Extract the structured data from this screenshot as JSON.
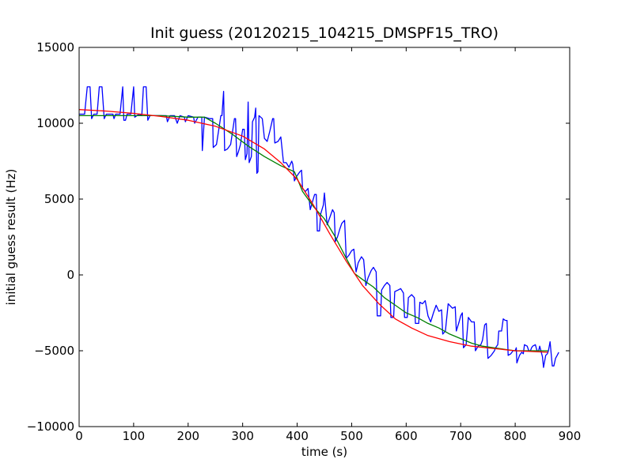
{
  "chart_data": {
    "type": "line",
    "title": "Init guess (20120215_104215_DMSPF15_TRO)",
    "xlabel": "time (s)",
    "ylabel": "initial guess result (Hz)",
    "xlim": [
      0,
      900
    ],
    "ylim": [
      -10000,
      15000
    ],
    "xticks": [
      0,
      100,
      200,
      300,
      400,
      500,
      600,
      700,
      800,
      900
    ],
    "yticks": [
      -10000,
      -5000,
      0,
      5000,
      10000,
      15000
    ],
    "xtick_labels": [
      "0",
      "100",
      "200",
      "300",
      "400",
      "500",
      "600",
      "700",
      "800",
      "900"
    ],
    "ytick_labels": [
      "−10000",
      "−5000",
      "0",
      "5000",
      "10000",
      "15000"
    ],
    "grid": false,
    "legend": "none",
    "series": [
      {
        "color": "#0000ff",
        "points": [
          [
            0,
            10600
          ],
          [
            10,
            10600
          ],
          [
            15,
            12400
          ],
          [
            20,
            12400
          ],
          [
            23,
            10300
          ],
          [
            27,
            10600
          ],
          [
            33,
            10600
          ],
          [
            37,
            12400
          ],
          [
            42,
            12400
          ],
          [
            46,
            10300
          ],
          [
            50,
            10600
          ],
          [
            55,
            10600
          ],
          [
            62,
            10600
          ],
          [
            64,
            10300
          ],
          [
            67,
            10600
          ],
          [
            75,
            10600
          ],
          [
            80,
            12400
          ],
          [
            82,
            10200
          ],
          [
            85,
            10200
          ],
          [
            88,
            10600
          ],
          [
            95,
            10600
          ],
          [
            100,
            12400
          ],
          [
            102,
            10400
          ],
          [
            110,
            10600
          ],
          [
            115,
            10500
          ],
          [
            118,
            12400
          ],
          [
            123,
            12400
          ],
          [
            126,
            10200
          ],
          [
            130,
            10500
          ],
          [
            145,
            10500
          ],
          [
            160,
            10500
          ],
          [
            162,
            10100
          ],
          [
            167,
            10500
          ],
          [
            175,
            10500
          ],
          [
            180,
            10000
          ],
          [
            185,
            10500
          ],
          [
            193,
            10400
          ],
          [
            195,
            10100
          ],
          [
            200,
            10500
          ],
          [
            210,
            10400
          ],
          [
            212,
            10000
          ],
          [
            218,
            10400
          ],
          [
            225,
            10400
          ],
          [
            226,
            8200
          ],
          [
            230,
            10400
          ],
          [
            240,
            10300
          ],
          [
            245,
            10300
          ],
          [
            246,
            8400
          ],
          [
            252,
            8600
          ],
          [
            258,
            10000
          ],
          [
            260,
            10500
          ],
          [
            262,
            10500
          ],
          [
            265,
            12100
          ],
          [
            267,
            8200
          ],
          [
            272,
            8300
          ],
          [
            278,
            8600
          ],
          [
            285,
            10300
          ],
          [
            287,
            10300
          ],
          [
            289,
            7800
          ],
          [
            292,
            8100
          ],
          [
            296,
            8600
          ],
          [
            300,
            9600
          ],
          [
            303,
            9600
          ],
          [
            305,
            7600
          ],
          [
            308,
            8000
          ],
          [
            310,
            11400
          ],
          [
            312,
            7400
          ],
          [
            316,
            7800
          ],
          [
            318,
            10100
          ],
          [
            322,
            10400
          ],
          [
            324,
            11000
          ],
          [
            326,
            6700
          ],
          [
            328,
            6800
          ],
          [
            330,
            10500
          ],
          [
            336,
            10300
          ],
          [
            340,
            9000
          ],
          [
            345,
            8800
          ],
          [
            350,
            9500
          ],
          [
            355,
            10300
          ],
          [
            357,
            10300
          ],
          [
            359,
            8700
          ],
          [
            365,
            8800
          ],
          [
            370,
            9100
          ],
          [
            375,
            7400
          ],
          [
            380,
            7400
          ],
          [
            385,
            7100
          ],
          [
            390,
            7500
          ],
          [
            392,
            7300
          ],
          [
            395,
            6200
          ],
          [
            399,
            6500
          ],
          [
            405,
            6800
          ],
          [
            408,
            6900
          ],
          [
            410,
            5700
          ],
          [
            415,
            5500
          ],
          [
            420,
            5700
          ],
          [
            424,
            4300
          ],
          [
            428,
            4800
          ],
          [
            432,
            5300
          ],
          [
            435,
            5300
          ],
          [
            437,
            2900
          ],
          [
            441,
            2900
          ],
          [
            443,
            4000
          ],
          [
            448,
            4600
          ],
          [
            450,
            5400
          ],
          [
            455,
            3300
          ],
          [
            460,
            3800
          ],
          [
            465,
            4300
          ],
          [
            468,
            4100
          ],
          [
            470,
            2200
          ],
          [
            474,
            2500
          ],
          [
            478,
            3000
          ],
          [
            482,
            3400
          ],
          [
            487,
            3600
          ],
          [
            490,
            1100
          ],
          [
            495,
            1300
          ],
          [
            500,
            1600
          ],
          [
            504,
            1700
          ],
          [
            508,
            200
          ],
          [
            512,
            800
          ],
          [
            518,
            1200
          ],
          [
            522,
            1000
          ],
          [
            526,
            -700
          ],
          [
            530,
            -200
          ],
          [
            536,
            300
          ],
          [
            540,
            500
          ],
          [
            545,
            200
          ],
          [
            547,
            -2700
          ],
          [
            553,
            -2700
          ],
          [
            555,
            -1000
          ],
          [
            560,
            -700
          ],
          [
            565,
            -500
          ],
          [
            570,
            -700
          ],
          [
            572,
            -2800
          ],
          [
            577,
            -2800
          ],
          [
            579,
            -1100
          ],
          [
            585,
            -1000
          ],
          [
            590,
            -900
          ],
          [
            595,
            -1200
          ],
          [
            597,
            -2800
          ],
          [
            602,
            -2800
          ],
          [
            604,
            -1500
          ],
          [
            610,
            -1300
          ],
          [
            615,
            -1500
          ],
          [
            617,
            -3200
          ],
          [
            623,
            -3200
          ],
          [
            625,
            -1800
          ],
          [
            630,
            -1900
          ],
          [
            635,
            -1700
          ],
          [
            640,
            -2700
          ],
          [
            645,
            -3100
          ],
          [
            650,
            -2500
          ],
          [
            655,
            -2000
          ],
          [
            660,
            -2400
          ],
          [
            665,
            -2300
          ],
          [
            667,
            -3900
          ],
          [
            672,
            -3700
          ],
          [
            677,
            -1900
          ],
          [
            685,
            -2200
          ],
          [
            690,
            -2100
          ],
          [
            692,
            -3700
          ],
          [
            697,
            -3100
          ],
          [
            700,
            -2700
          ],
          [
            703,
            -2500
          ],
          [
            705,
            -4800
          ],
          [
            710,
            -4600
          ],
          [
            714,
            -2800
          ],
          [
            720,
            -3100
          ],
          [
            725,
            -3100
          ],
          [
            727,
            -5000
          ],
          [
            732,
            -4700
          ],
          [
            737,
            -4600
          ],
          [
            740,
            -4300
          ],
          [
            742,
            -3800
          ],
          [
            744,
            -3300
          ],
          [
            747,
            -3200
          ],
          [
            750,
            -5500
          ],
          [
            756,
            -5300
          ],
          [
            762,
            -5000
          ],
          [
            764,
            -4800
          ],
          [
            768,
            -4600
          ],
          [
            770,
            -3700
          ],
          [
            775,
            -3700
          ],
          [
            778,
            -2900
          ],
          [
            782,
            -3000
          ],
          [
            785,
            -3000
          ],
          [
            787,
            -5300
          ],
          [
            792,
            -5200
          ],
          [
            796,
            -5000
          ],
          [
            800,
            -5000
          ],
          [
            802,
            -4800
          ],
          [
            803,
            -5800
          ],
          [
            808,
            -5300
          ],
          [
            812,
            -5100
          ],
          [
            815,
            -5200
          ],
          [
            817,
            -4600
          ],
          [
            822,
            -4700
          ],
          [
            825,
            -5000
          ],
          [
            828,
            -5000
          ],
          [
            830,
            -4800
          ],
          [
            832,
            -4700
          ],
          [
            837,
            -4600
          ],
          [
            840,
            -5000
          ],
          [
            843,
            -5000
          ],
          [
            845,
            -4700
          ],
          [
            850,
            -5400
          ],
          [
            852,
            -6100
          ],
          [
            856,
            -5300
          ],
          [
            859,
            -5200
          ],
          [
            861,
            -5000
          ],
          [
            864,
            -4400
          ],
          [
            868,
            -6000
          ],
          [
            871,
            -6000
          ],
          [
            874,
            -5500
          ],
          [
            877,
            -5300
          ],
          [
            880,
            -5100
          ]
        ]
      },
      {
        "color": "#008000",
        "points": [
          [
            0,
            10500
          ],
          [
            50,
            10500
          ],
          [
            100,
            10500
          ],
          [
            150,
            10500
          ],
          [
            200,
            10400
          ],
          [
            230,
            10400
          ],
          [
            250,
            10000
          ],
          [
            280,
            9300
          ],
          [
            310,
            8500
          ],
          [
            340,
            7800
          ],
          [
            370,
            7200
          ],
          [
            395,
            6800
          ],
          [
            410,
            5500
          ],
          [
            430,
            4500
          ],
          [
            450,
            3700
          ],
          [
            470,
            2500
          ],
          [
            490,
            1100
          ],
          [
            505,
            100
          ],
          [
            520,
            -300
          ],
          [
            540,
            -800
          ],
          [
            560,
            -1500
          ],
          [
            580,
            -2000
          ],
          [
            600,
            -2500
          ],
          [
            620,
            -2800
          ],
          [
            640,
            -3200
          ],
          [
            660,
            -3500
          ],
          [
            680,
            -3900
          ],
          [
            700,
            -4200
          ],
          [
            720,
            -4500
          ],
          [
            740,
            -4700
          ],
          [
            760,
            -4800
          ],
          [
            780,
            -4900
          ],
          [
            800,
            -5000
          ],
          [
            820,
            -5000
          ],
          [
            840,
            -5000
          ],
          [
            860,
            -5000
          ]
        ]
      },
      {
        "color": "#ff0000",
        "points": [
          [
            0,
            10900
          ],
          [
            50,
            10800
          ],
          [
            100,
            10650
          ],
          [
            150,
            10450
          ],
          [
            200,
            10200
          ],
          [
            250,
            9800
          ],
          [
            300,
            9150
          ],
          [
            340,
            8300
          ],
          [
            370,
            7400
          ],
          [
            400,
            6300
          ],
          [
            430,
            4600
          ],
          [
            460,
            2700
          ],
          [
            490,
            900
          ],
          [
            520,
            -700
          ],
          [
            550,
            -1900
          ],
          [
            580,
            -2900
          ],
          [
            610,
            -3500
          ],
          [
            640,
            -4000
          ],
          [
            680,
            -4400
          ],
          [
            720,
            -4700
          ],
          [
            760,
            -4850
          ],
          [
            800,
            -5000
          ],
          [
            860,
            -5100
          ]
        ]
      }
    ]
  }
}
